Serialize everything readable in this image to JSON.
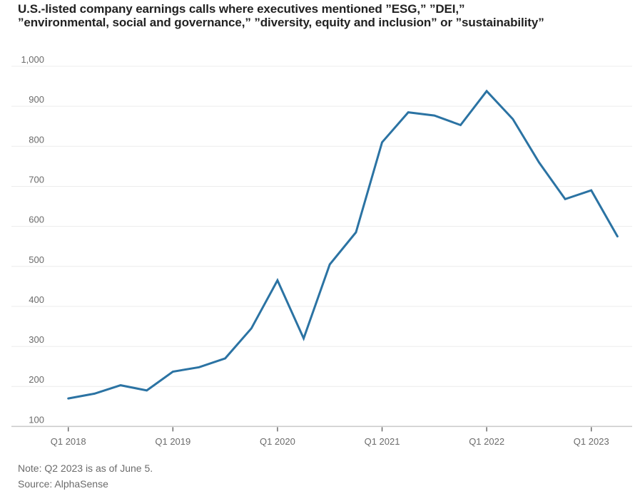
{
  "title": {
    "line1": "U.S.-listed company earnings calls where executives mentioned ”ESG,” ”DEI,”",
    "line2": "”environmental, social and governance,” ”diversity, equity and inclusion” or ”sustainability”"
  },
  "footer": {
    "note": "Note: Q2 2023 is as of June 5.",
    "source": "Source: AlphaSense"
  },
  "chart_data": {
    "type": "line",
    "title": "U.S.-listed company earnings calls where executives mentioned ”ESG,” ”DEI,” ”environmental, social and governance,” ”diversity, equity and inclusion” or ”sustainability”",
    "categories": [
      "Q1 2018",
      "Q2 2018",
      "Q3 2018",
      "Q4 2018",
      "Q1 2019",
      "Q2 2019",
      "Q3 2019",
      "Q4 2019",
      "Q1 2020",
      "Q2 2020",
      "Q3 2020",
      "Q4 2020",
      "Q1 2021",
      "Q2 2021",
      "Q3 2021",
      "Q4 2021",
      "Q1 2022",
      "Q2 2022",
      "Q3 2022",
      "Q4 2022",
      "Q1 2023",
      "Q2 2023"
    ],
    "values": [
      170,
      182,
      203,
      190,
      237,
      248,
      270,
      345,
      465,
      320,
      505,
      585,
      810,
      885,
      877,
      853,
      938,
      868,
      760,
      668,
      690,
      575
    ],
    "xlabel": "",
    "ylabel": "",
    "ylim": [
      100,
      1000
    ],
    "yticks": [
      100,
      200,
      300,
      400,
      500,
      600,
      700,
      800,
      900,
      1000
    ],
    "xticks_shown": [
      "Q1 2018",
      "Q1 2019",
      "Q1 2020",
      "Q1 2021",
      "Q1 2022",
      "Q1 2023"
    ],
    "grid": "horizontal",
    "legend": "none",
    "line_color": "#2b73a3",
    "grid_color": "#ececec",
    "axis_color": "#c9c9c9",
    "tick_color": "#6b6b6b",
    "label_color": "#6b6b6b"
  }
}
